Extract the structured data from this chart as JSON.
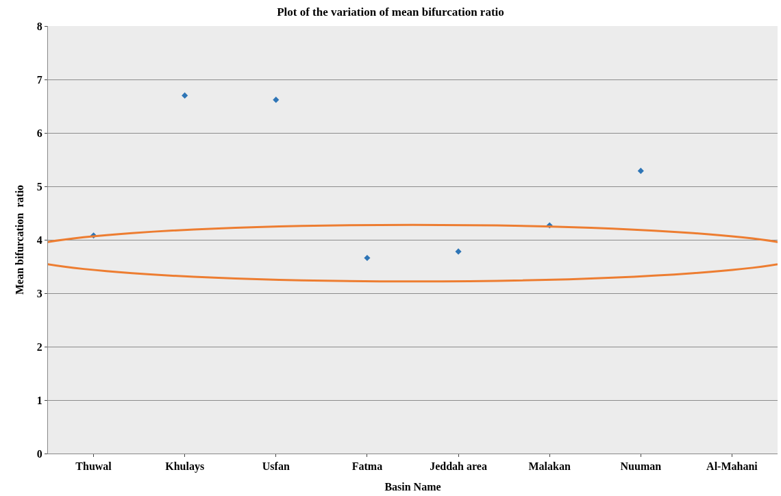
{
  "chart_data": {
    "type": "scatter",
    "title": "Plot of the variation of mean bifurcation ratio",
    "xlabel": "Basin Name",
    "ylabel": "Mean bifurcation  ratio",
    "categories": [
      "Thuwal",
      "Khulays",
      "Usfan",
      "Fatma",
      "Jeddah area",
      "Malakan",
      "Nuuman",
      "Al-Mahani"
    ],
    "series": [
      {
        "color": "#2e75b6",
        "values": [
          4.08,
          6.7,
          6.62,
          3.66,
          3.78,
          4.27,
          5.29,
          null
        ]
      }
    ],
    "ylim": [
      0,
      8
    ],
    "yticks": [
      0,
      1,
      2,
      3,
      4,
      5,
      6,
      7,
      8
    ],
    "grid": "y",
    "marker": "diamond"
  }
}
